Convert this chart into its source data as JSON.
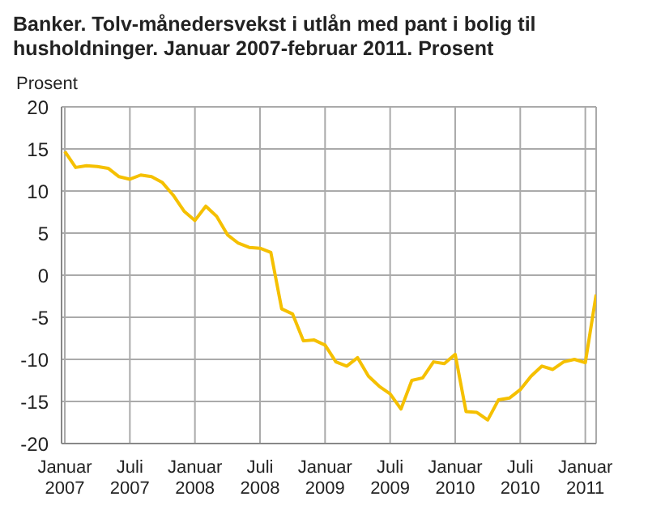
{
  "chart_data": {
    "type": "line",
    "title": "Banker. Tolv-månedersvekst i utlån med pant i bolig til husholdninger. Januar 2007-februar 2011. Prosent",
    "ylabel": "Prosent",
    "categories": [
      "Januar 2007",
      null,
      null,
      null,
      null,
      null,
      "Juli 2007",
      null,
      null,
      null,
      null,
      null,
      "Januar 2008",
      null,
      null,
      null,
      null,
      null,
      "Juli 2008",
      null,
      null,
      null,
      null,
      null,
      "Januar 2009",
      null,
      null,
      null,
      null,
      null,
      "Juli 2009",
      null,
      null,
      null,
      null,
      null,
      "Januar 2010",
      null,
      null,
      null,
      null,
      null,
      "Juli 2010",
      null,
      null,
      null,
      null,
      null,
      "Januar 2011",
      null
    ],
    "series": [
      {
        "color": "#f5c000",
        "values": [
          14.7,
          12.8,
          13,
          12.9,
          12.7,
          11.7,
          11.4,
          11.9,
          11.7,
          11,
          9.5,
          7.6,
          6.5,
          8.2,
          7,
          4.8,
          3.8,
          3.3,
          3.2,
          2.7,
          -4,
          -4.6,
          -7.8,
          -7.7,
          -8.3,
          -10.3,
          -10.8,
          -9.8,
          -12,
          -13.2,
          -14.1,
          -15.9,
          -12.5,
          -12.2,
          -10.3,
          -10.5,
          -9.4,
          -16.2,
          -16.3,
          -17.2,
          -14.8,
          -14.6,
          -13.6,
          -12,
          -10.8,
          -11.2,
          -10.3,
          -10,
          -10.4,
          -2.3
        ]
      }
    ],
    "ylim": [
      -20,
      20
    ],
    "yticks": [
      -20,
      -15,
      -10,
      -5,
      0,
      5,
      10,
      15,
      20
    ],
    "grid": true,
    "legend": false,
    "marker": "none",
    "line_style": "solid"
  }
}
